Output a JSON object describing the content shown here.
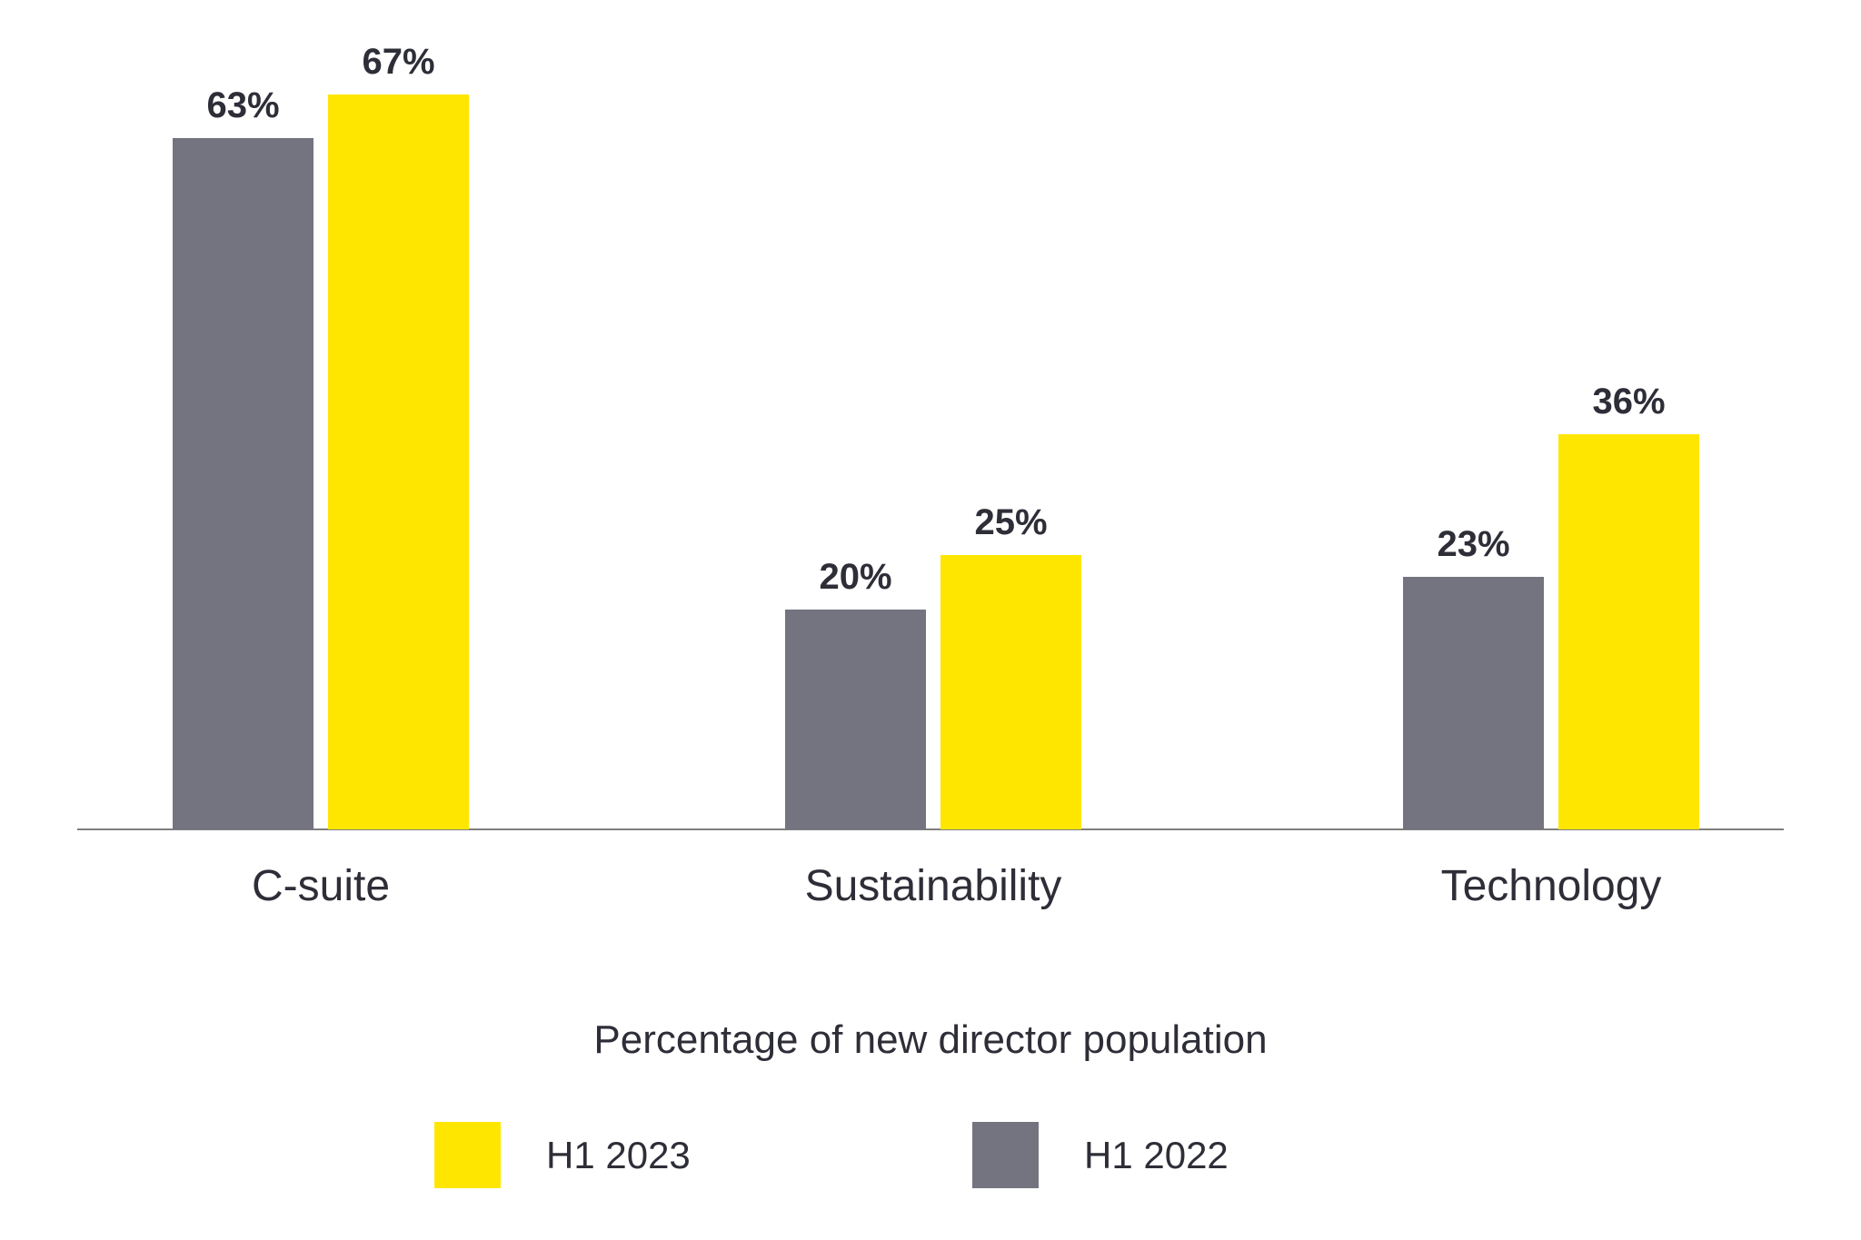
{
  "chart_data": {
    "type": "bar",
    "title": "",
    "caption": "Percentage of new director population",
    "categories": [
      "C-suite",
      "Sustainability",
      "Technology"
    ],
    "series": [
      {
        "name": "H1 2022",
        "color": "#747480",
        "values": [
          63,
          20,
          23
        ]
      },
      {
        "name": "H1 2023",
        "color": "#FFE600",
        "values": [
          67,
          25,
          36
        ]
      }
    ],
    "value_suffix": "%",
    "data_labels": {
      "H1 2022": [
        "63%",
        "20%",
        "23%"
      ],
      "H1 2023": [
        "67%",
        "25%",
        "36%"
      ]
    },
    "ylim": [
      0,
      75
    ],
    "grid": false,
    "legend_position": "bottom",
    "legend": [
      {
        "label": "H1 2023",
        "color": "#FFE600"
      },
      {
        "label": "H1 2022",
        "color": "#747480"
      }
    ],
    "axis_color": "#7f7f7f",
    "text_color": "#2E2E38"
  }
}
